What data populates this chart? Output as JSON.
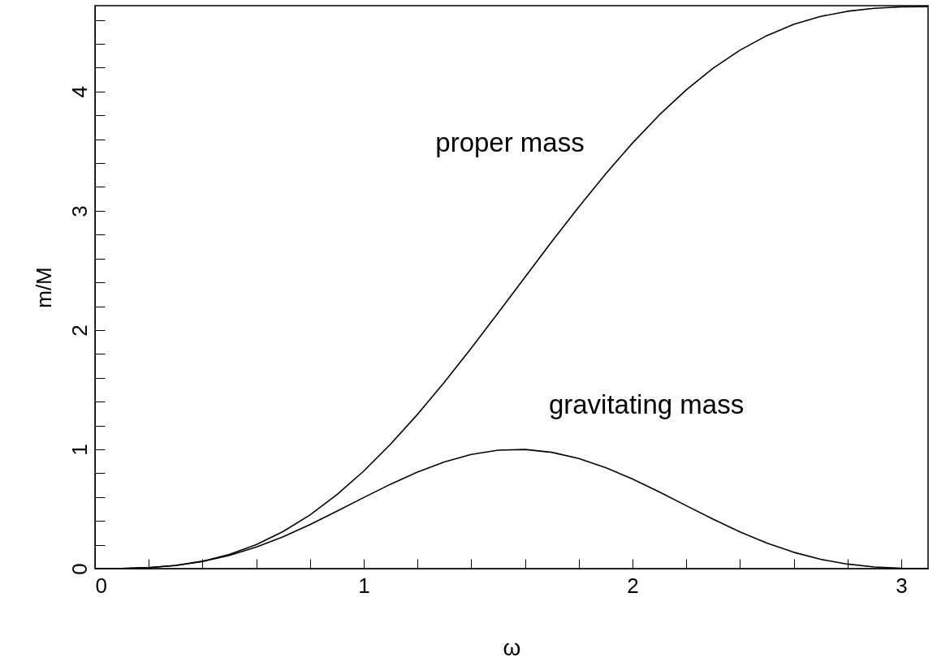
{
  "chart_data": {
    "type": "line",
    "xlabel": "ω",
    "ylabel": "m/M",
    "x": [
      0,
      0.1,
      0.2,
      0.3,
      0.4,
      0.5,
      0.6,
      0.7,
      0.8,
      0.9,
      1.0,
      1.1,
      1.2,
      1.3,
      1.4,
      1.5,
      1.6,
      1.7,
      1.8,
      1.9,
      2.0,
      2.1,
      2.2,
      2.3,
      2.4,
      2.5,
      2.6,
      2.7,
      2.8,
      2.9,
      3.0,
      3.1
    ],
    "series": [
      {
        "color": "#000000",
        "values": [
          0,
          0.001,
          0.008,
          0.027,
          0.062,
          0.119,
          0.201,
          0.311,
          0.45,
          0.62,
          0.818,
          1.044,
          1.293,
          1.563,
          1.849,
          2.144,
          2.444,
          2.742,
          3.032,
          3.309,
          3.568,
          3.804,
          4.014,
          4.195,
          4.347,
          4.469,
          4.563,
          4.63,
          4.673,
          4.698,
          4.71,
          4.712
        ]
      },
      {
        "color": "#000000",
        "values": [
          0,
          0.001,
          0.008,
          0.026,
          0.059,
          0.11,
          0.18,
          0.267,
          0.369,
          0.481,
          0.596,
          0.708,
          0.81,
          0.895,
          0.957,
          0.993,
          0.999,
          0.975,
          0.923,
          0.847,
          0.752,
          0.643,
          0.528,
          0.415,
          0.308,
          0.214,
          0.137,
          0.078,
          0.038,
          0.014,
          0.003,
          0
        ]
      }
    ],
    "xlim": [
      0,
      3.1
    ],
    "ylim": [
      0,
      4.72
    ],
    "xticks": [
      0,
      {
        "value": 0.2,
        "label": null
      },
      {
        "value": 0.4,
        "label": null
      },
      {
        "value": 0.6,
        "label": null
      },
      {
        "value": 0.8,
        "label": null
      },
      1,
      {
        "value": 1.2,
        "label": null
      },
      {
        "value": 1.4,
        "label": null
      },
      {
        "value": 1.6,
        "label": null
      },
      {
        "value": 1.8,
        "label": null
      },
      2,
      {
        "value": 2.2,
        "label": null
      },
      {
        "value": 2.4,
        "label": null
      },
      {
        "value": 2.6,
        "label": null
      },
      {
        "value": 2.8,
        "label": null
      },
      3
    ],
    "yticks": [
      0,
      {
        "value": 0.2,
        "label": null
      },
      {
        "value": 0.4,
        "label": null
      },
      {
        "value": 0.6,
        "label": null
      },
      {
        "value": 0.8,
        "label": null
      },
      1,
      {
        "value": 1.2,
        "label": null
      },
      {
        "value": 1.4,
        "label": null
      },
      {
        "value": 1.6,
        "label": null
      },
      {
        "value": 1.8,
        "label": null
      },
      2,
      {
        "value": 2.2,
        "label": null
      },
      {
        "value": 2.4,
        "label": null
      },
      {
        "value": 2.6,
        "label": null
      },
      {
        "value": 2.8,
        "label": null
      },
      3,
      {
        "value": 3.2,
        "label": null
      },
      {
        "value": 3.4,
        "label": null
      },
      {
        "value": 3.6,
        "label": null
      },
      {
        "value": 3.8,
        "label": null
      },
      4,
      {
        "value": 4.2,
        "label": null
      },
      {
        "value": 4.4,
        "label": null
      },
      {
        "value": 4.6,
        "label": null
      }
    ],
    "annotations": [
      "proper mass",
      "gravitating mass"
    ],
    "grid": false
  }
}
